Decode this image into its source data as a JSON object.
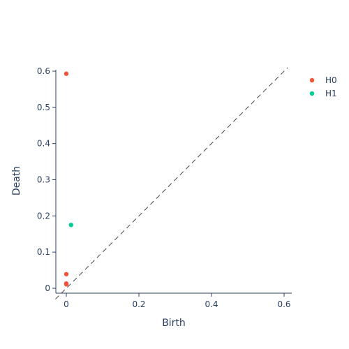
{
  "chart_data": {
    "type": "scatter",
    "xlabel": "Birth",
    "ylabel": "Death",
    "xlim": [
      -0.03,
      0.62
    ],
    "ylim": [
      -0.012,
      0.605
    ],
    "xticks": [
      0,
      0.2,
      0.4,
      0.6
    ],
    "xtick_labels": [
      "0",
      "0.2",
      "0.4",
      "0.6"
    ],
    "yticks": [
      0,
      0.1,
      0.2,
      0.3,
      0.4,
      0.5,
      0.6
    ],
    "ytick_labels": [
      "0",
      "0.1",
      "0.2",
      "0.3",
      "0.4",
      "0.5",
      "0.6"
    ],
    "grid": false,
    "diagonal": {
      "from": [
        -0.03,
        -0.03
      ],
      "to": [
        0.61,
        0.61
      ],
      "style": "dashed",
      "color": "#444444"
    },
    "legend_position": "top-right",
    "series": [
      {
        "name": "H0",
        "color": "#EF553B",
        "points": [
          [
            0,
            0.593
          ],
          [
            0,
            0.039
          ],
          [
            0,
            0.013
          ],
          [
            0,
            0.011
          ],
          [
            0,
            0.012
          ]
        ]
      },
      {
        "name": "H1",
        "color": "#00CC96",
        "points": [
          [
            0.013,
            0.175
          ]
        ]
      }
    ]
  }
}
